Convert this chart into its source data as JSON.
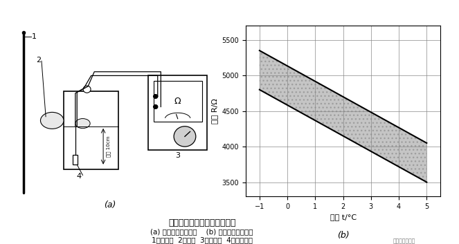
{
  "title": "热敏电阻检查方法及特性曲线",
  "subtitle_a": "(a) 热敏电阻检查方法",
  "subtitle_b": "(b) 热敏电阻特性曲线",
  "legend": "1－温度计  2－冰块  3－欧姆表  4－热敏电阻",
  "label_a": "(a)",
  "label_b": "(b)",
  "xlabel": "温度 t/°C",
  "ylabel": "电阻 R/Ω",
  "x_ticks": [
    -1,
    0,
    1,
    2,
    3,
    4,
    5
  ],
  "y_ticks": [
    3500,
    4000,
    4500,
    5000,
    5500
  ],
  "xlim": [
    -1.5,
    5.5
  ],
  "ylim": [
    3300,
    5700
  ],
  "upper_line": [
    [
      -1,
      5350
    ],
    [
      5,
      4050
    ]
  ],
  "lower_line": [
    [
      -1,
      4800
    ],
    [
      5,
      3500
    ]
  ],
  "bg_color": "#ffffff",
  "band_color": "#bbbbbb",
  "line_color": "#000000",
  "grid_color": "#888888"
}
